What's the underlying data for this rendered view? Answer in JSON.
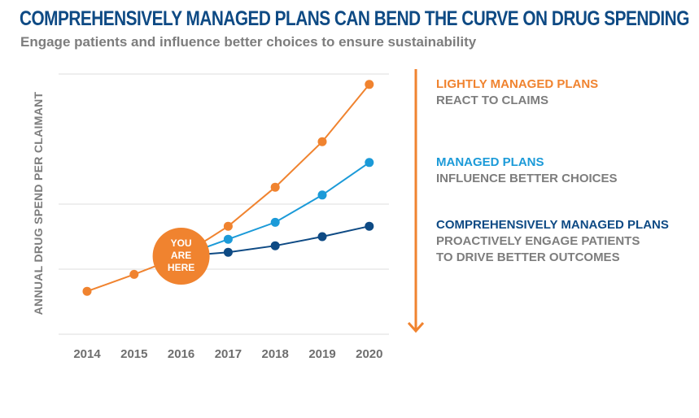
{
  "title": "COMPREHENSIVELY MANAGED PLANS CAN BEND THE CURVE ON DRUG SPENDING",
  "subtitle": "Engage patients and influence better choices to ensure sustainability",
  "colors": {
    "title": "#0e4a84",
    "gray_text": "#7d7d7d",
    "orange": "#f0832f",
    "light_blue": "#1b9ad8",
    "dark_blue": "#0e4a84",
    "grid": "#dcdcdc"
  },
  "annotation": {
    "marker_lines": [
      "YOU",
      "ARE",
      "HERE"
    ],
    "marker_year": 2016,
    "arrow_direction": "down"
  },
  "legend": [
    {
      "name": "LIGHTLY MANAGED PLANS",
      "desc": [
        "REACT TO CLAIMS"
      ],
      "color": "#f0832f"
    },
    {
      "name": "MANAGED PLANS",
      "desc": [
        "INFLUENCE BETTER CHOICES"
      ],
      "color": "#1b9ad8"
    },
    {
      "name": "COMPREHENSIVELY MANAGED PLANS",
      "desc": [
        "PROACTIVELY ENGAGE PATIENTS",
        "TO DRIVE BETTER OUTCOMES"
      ],
      "color": "#0e4a84"
    }
  ],
  "chart_data": {
    "type": "line",
    "title": "COMPREHENSIVELY MANAGED PLANS CAN BEND THE CURVE ON DRUG SPENDING",
    "subtitle": "Engage patients and influence better choices to ensure sustainability",
    "xlabel": "",
    "ylabel": "ANNUAL DRUG SPEND PER CLAIMANT",
    "x": [
      2014,
      2015,
      2016,
      2017,
      2018,
      2019,
      2020
    ],
    "ylim": [
      0,
      100
    ],
    "y_tick_labels_shown": false,
    "grid": "horizontal",
    "legend_position": "right",
    "series": [
      {
        "name": "LIGHTLY MANAGED PLANS",
        "color": "#f0832f",
        "points": [
          [
            2014,
            16.5
          ],
          [
            2015,
            23.0
          ],
          [
            2016,
            30.0
          ],
          [
            2017,
            41.5
          ],
          [
            2018,
            56.5
          ],
          [
            2019,
            74.0
          ],
          [
            2020,
            96.0
          ]
        ]
      },
      {
        "name": "MANAGED PLANS",
        "color": "#1b9ad8",
        "points": [
          [
            2016,
            30.0
          ],
          [
            2017,
            36.5
          ],
          [
            2018,
            43.0
          ],
          [
            2019,
            53.5
          ],
          [
            2020,
            66.0
          ]
        ]
      },
      {
        "name": "COMPREHENSIVELY MANAGED PLANS",
        "color": "#0e4a84",
        "points": [
          [
            2016,
            30.0
          ],
          [
            2017,
            31.5
          ],
          [
            2018,
            34.0
          ],
          [
            2019,
            37.5
          ],
          [
            2020,
            41.5
          ]
        ]
      }
    ]
  }
}
